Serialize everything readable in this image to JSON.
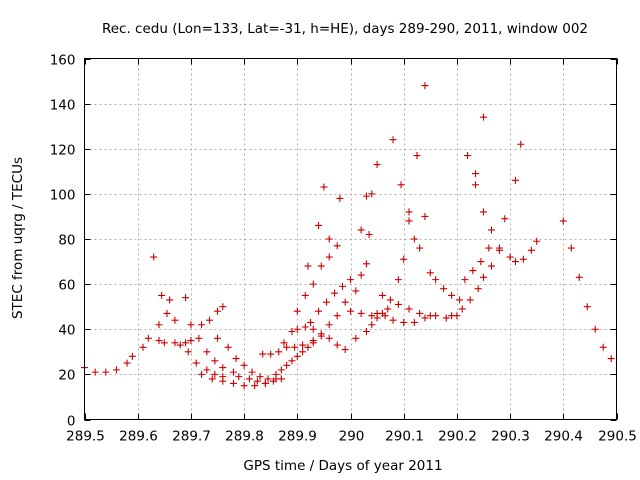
{
  "chart_data": {
    "type": "scatter",
    "title": "Rec. cedu (Lon=133, Lat=-31, h=HE), days 289-290, 2011, window 002",
    "xlabel": "GPS time / Days of year 2011",
    "ylabel": "STEC from uqrg / TECUs",
    "xlim": [
      289.5,
      290.5
    ],
    "ylim": [
      0,
      160
    ],
    "xticks": [
      289.5,
      289.6,
      289.7,
      289.8,
      289.9,
      290,
      290.1,
      290.2,
      290.3,
      290.4,
      290.5
    ],
    "xtick_labels": [
      "289.5",
      "289.6",
      "289.7",
      "289.8",
      "289.9",
      "290",
      "290.1",
      "290.2",
      "290.3",
      "290.4",
      "290.5"
    ],
    "yticks": [
      0,
      20,
      40,
      60,
      80,
      100,
      120,
      140,
      160
    ],
    "ytick_labels": [
      "0",
      "20",
      "40",
      "60",
      "80",
      "100",
      "120",
      "140",
      "160"
    ],
    "grid": true,
    "marker": "+",
    "color": "#cc0000",
    "points": [
      [
        289.5,
        23
      ],
      [
        289.52,
        21
      ],
      [
        289.54,
        21
      ],
      [
        289.56,
        22
      ],
      [
        289.58,
        25
      ],
      [
        289.59,
        28
      ],
      [
        289.61,
        32
      ],
      [
        289.62,
        36
      ],
      [
        289.64,
        35
      ],
      [
        289.65,
        34
      ],
      [
        289.67,
        34
      ],
      [
        289.68,
        33
      ],
      [
        289.69,
        34
      ],
      [
        289.7,
        35
      ],
      [
        289.63,
        72
      ],
      [
        289.645,
        55
      ],
      [
        289.66,
        53
      ],
      [
        289.69,
        54
      ],
      [
        289.64,
        42
      ],
      [
        289.655,
        47
      ],
      [
        289.67,
        44
      ],
      [
        289.7,
        42
      ],
      [
        289.72,
        42
      ],
      [
        289.735,
        44
      ],
      [
        289.75,
        48
      ],
      [
        289.76,
        50
      ],
      [
        289.695,
        30
      ],
      [
        289.71,
        25
      ],
      [
        289.73,
        22
      ],
      [
        289.745,
        20
      ],
      [
        289.76,
        19
      ],
      [
        289.715,
        36
      ],
      [
        289.73,
        30
      ],
      [
        289.745,
        26
      ],
      [
        289.76,
        23
      ],
      [
        289.78,
        21
      ],
      [
        289.72,
        20
      ],
      [
        289.74,
        18
      ],
      [
        289.76,
        17
      ],
      [
        289.78,
        16
      ],
      [
        289.8,
        15
      ],
      [
        289.82,
        15
      ],
      [
        289.84,
        16
      ],
      [
        289.75,
        36
      ],
      [
        289.77,
        32
      ],
      [
        289.785,
        27
      ],
      [
        289.8,
        24
      ],
      [
        289.815,
        21
      ],
      [
        289.83,
        19
      ],
      [
        289.845,
        18
      ],
      [
        289.86,
        18
      ],
      [
        289.79,
        19
      ],
      [
        289.81,
        18
      ],
      [
        289.825,
        17
      ],
      [
        289.84,
        16
      ],
      [
        289.855,
        17
      ],
      [
        289.87,
        18
      ],
      [
        289.835,
        29
      ],
      [
        289.85,
        29
      ],
      [
        289.865,
        30
      ],
      [
        289.88,
        32
      ],
      [
        289.895,
        32
      ],
      [
        289.91,
        33
      ],
      [
        289.86,
        20
      ],
      [
        289.87,
        22
      ],
      [
        289.88,
        24
      ],
      [
        289.89,
        26
      ],
      [
        289.9,
        28
      ],
      [
        289.91,
        30
      ],
      [
        289.92,
        32
      ],
      [
        289.93,
        35
      ],
      [
        289.875,
        34
      ],
      [
        289.89,
        39
      ],
      [
        289.9,
        48
      ],
      [
        289.915,
        55
      ],
      [
        289.93,
        60
      ],
      [
        289.945,
        68
      ],
      [
        289.96,
        72
      ],
      [
        289.92,
        68
      ],
      [
        289.94,
        86
      ],
      [
        289.95,
        103
      ],
      [
        289.96,
        80
      ],
      [
        289.975,
        77
      ],
      [
        289.98,
        98
      ],
      [
        289.9,
        40
      ],
      [
        289.915,
        41
      ],
      [
        289.93,
        40
      ],
      [
        289.945,
        38
      ],
      [
        289.96,
        36
      ],
      [
        289.975,
        33
      ],
      [
        289.99,
        31
      ],
      [
        289.925,
        43
      ],
      [
        289.94,
        48
      ],
      [
        289.955,
        52
      ],
      [
        289.97,
        56
      ],
      [
        289.985,
        59
      ],
      [
        290.0,
        62
      ],
      [
        289.93,
        34
      ],
      [
        289.945,
        37
      ],
      [
        289.96,
        42
      ],
      [
        289.975,
        46
      ],
      [
        289.99,
        52
      ],
      [
        290.0,
        48
      ],
      [
        290.01,
        57
      ],
      [
        290.02,
        64
      ],
      [
        290.03,
        69
      ],
      [
        290.04,
        100
      ],
      [
        290.05,
        113
      ],
      [
        290.03,
        99
      ],
      [
        290.02,
        84
      ],
      [
        290.035,
        82
      ],
      [
        290.01,
        36
      ],
      [
        290.03,
        39
      ],
      [
        290.04,
        42
      ],
      [
        290.05,
        45
      ],
      [
        290.06,
        47
      ],
      [
        290.07,
        49
      ],
      [
        290.02,
        47
      ],
      [
        290.04,
        46
      ],
      [
        290.05,
        47
      ],
      [
        290.065,
        46
      ],
      [
        290.08,
        44
      ],
      [
        290.1,
        43
      ],
      [
        290.12,
        43
      ],
      [
        290.14,
        45
      ],
      [
        290.16,
        46
      ],
      [
        290.18,
        45
      ],
      [
        290.2,
        46
      ],
      [
        290.06,
        55
      ],
      [
        290.075,
        53
      ],
      [
        290.09,
        51
      ],
      [
        290.11,
        49
      ],
      [
        290.13,
        47
      ],
      [
        290.15,
        46
      ],
      [
        290.08,
        124
      ],
      [
        290.095,
        104
      ],
      [
        290.11,
        88
      ],
      [
        290.12,
        80
      ],
      [
        290.125,
        117
      ],
      [
        290.14,
        148
      ],
      [
        290.14,
        90
      ],
      [
        290.09,
        62
      ],
      [
        290.1,
        71
      ],
      [
        290.11,
        92
      ],
      [
        290.13,
        76
      ],
      [
        290.15,
        65
      ],
      [
        290.16,
        62
      ],
      [
        290.175,
        58
      ],
      [
        290.19,
        55
      ],
      [
        290.205,
        53
      ],
      [
        290.19,
        46
      ],
      [
        290.21,
        49
      ],
      [
        290.225,
        53
      ],
      [
        290.24,
        58
      ],
      [
        290.25,
        63
      ],
      [
        290.265,
        68
      ],
      [
        290.28,
        75
      ],
      [
        290.22,
        117
      ],
      [
        290.235,
        109
      ],
      [
        290.235,
        104
      ],
      [
        290.25,
        134
      ],
      [
        290.25,
        92
      ],
      [
        290.265,
        84
      ],
      [
        290.28,
        76
      ],
      [
        290.215,
        62
      ],
      [
        290.23,
        66
      ],
      [
        290.245,
        70
      ],
      [
        290.26,
        76
      ],
      [
        290.29,
        89
      ],
      [
        290.3,
        72
      ],
      [
        290.31,
        106
      ],
      [
        290.32,
        122
      ],
      [
        290.31,
        70
      ],
      [
        290.325,
        71
      ],
      [
        290.34,
        75
      ],
      [
        290.35,
        79
      ],
      [
        290.4,
        88
      ],
      [
        290.415,
        76
      ],
      [
        290.43,
        63
      ],
      [
        290.445,
        50
      ],
      [
        290.46,
        40
      ],
      [
        290.475,
        32
      ],
      [
        290.49,
        27
      ]
    ]
  }
}
